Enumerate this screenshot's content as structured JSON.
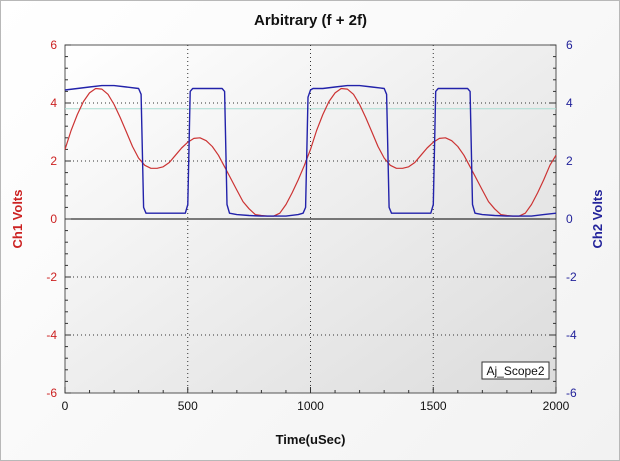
{
  "chart_data": {
    "type": "line",
    "title": "Arbitrary (f + 2f)",
    "xlabel": "Time(uSec)",
    "ylabel_left": "Ch1 Volts",
    "ylabel_right": "Ch2 Volts",
    "xlim": [
      0,
      2000
    ],
    "ylim_left": [
      -6,
      6
    ],
    "ylim_right": [
      -6,
      6
    ],
    "x_ticks": [
      0,
      500,
      1000,
      1500,
      2000
    ],
    "y_ticks_left": [
      -6,
      -4,
      -2,
      0,
      2,
      4,
      6
    ],
    "y_ticks_right": [
      -6,
      -4,
      -2,
      0,
      2,
      4,
      6
    ],
    "grid": true,
    "colors": {
      "ch1": "#cc3333",
      "ch2": "#2222aa",
      "ch1_axis": "#cc2222",
      "ch2_axis": "#22229a",
      "reference_line": "#a9dcd2",
      "zero_line": "#000000",
      "grid": "#333333"
    },
    "reference_line_y": 3.8,
    "badge": "Aj_Scope2",
    "series": [
      {
        "axis": "left",
        "x": [
          0,
          25,
          50,
          75,
          100,
          125,
          150,
          175,
          200,
          225,
          250,
          275,
          300,
          325,
          350,
          375,
          400,
          425,
          450,
          475,
          500,
          525,
          550,
          575,
          600,
          625,
          650,
          675,
          700,
          725,
          750,
          775,
          800,
          825,
          850,
          875,
          900,
          925,
          950,
          975,
          1000,
          1025,
          1050,
          1075,
          1100,
          1125,
          1150,
          1175,
          1200,
          1225,
          1250,
          1275,
          1300,
          1325,
          1350,
          1375,
          1400,
          1425,
          1450,
          1475,
          1500,
          1525,
          1550,
          1575,
          1600,
          1625,
          1650,
          1675,
          1700,
          1725,
          1750,
          1775,
          1800,
          1825,
          1850,
          1875,
          1900,
          1925,
          1950,
          1975,
          2000
        ],
        "y": [
          2.4,
          3.05,
          3.6,
          4.05,
          4.35,
          4.5,
          4.48,
          4.3,
          3.95,
          3.5,
          3.0,
          2.5,
          2.1,
          1.85,
          1.75,
          1.75,
          1.8,
          1.95,
          2.2,
          2.45,
          2.65,
          2.78,
          2.8,
          2.7,
          2.5,
          2.2,
          1.8,
          1.4,
          1.0,
          0.6,
          0.35,
          0.15,
          0.12,
          0.1,
          0.1,
          0.2,
          0.5,
          0.9,
          1.35,
          1.85,
          2.4,
          3.05,
          3.6,
          4.05,
          4.35,
          4.5,
          4.48,
          4.3,
          3.95,
          3.5,
          3.0,
          2.5,
          2.1,
          1.85,
          1.75,
          1.75,
          1.8,
          1.95,
          2.2,
          2.45,
          2.65,
          2.78,
          2.8,
          2.7,
          2.5,
          2.2,
          1.8,
          1.4,
          1.0,
          0.6,
          0.35,
          0.15,
          0.12,
          0.1,
          0.1,
          0.2,
          0.5,
          0.9,
          1.35,
          1.85,
          2.2
        ]
      },
      {
        "axis": "right",
        "x": [
          0,
          50,
          100,
          150,
          200,
          250,
          300,
          310,
          320,
          330,
          350,
          400,
          450,
          490,
          500,
          510,
          520,
          550,
          600,
          640,
          650,
          660,
          670,
          700,
          750,
          800,
          850,
          900,
          950,
          970,
          980,
          990,
          1000,
          1010,
          1050,
          1100,
          1150,
          1200,
          1250,
          1300,
          1310,
          1320,
          1330,
          1350,
          1400,
          1450,
          1490,
          1500,
          1510,
          1520,
          1550,
          1600,
          1640,
          1650,
          1660,
          1670,
          1700,
          1750,
          1800,
          1850,
          1900,
          1950,
          2000
        ],
        "y": [
          4.45,
          4.5,
          4.55,
          4.6,
          4.6,
          4.55,
          4.5,
          4.3,
          0.4,
          0.2,
          0.2,
          0.2,
          0.2,
          0.2,
          0.5,
          4.4,
          4.5,
          4.5,
          4.5,
          4.5,
          4.4,
          0.5,
          0.2,
          0.15,
          0.12,
          0.1,
          0.1,
          0.1,
          0.15,
          0.2,
          0.4,
          4.2,
          4.45,
          4.5,
          4.5,
          4.55,
          4.6,
          4.6,
          4.55,
          4.5,
          4.3,
          0.4,
          0.2,
          0.2,
          0.2,
          0.2,
          0.2,
          0.5,
          4.4,
          4.5,
          4.5,
          4.5,
          4.5,
          4.4,
          0.5,
          0.2,
          0.15,
          0.12,
          0.1,
          0.1,
          0.1,
          0.15,
          0.2
        ]
      }
    ]
  }
}
